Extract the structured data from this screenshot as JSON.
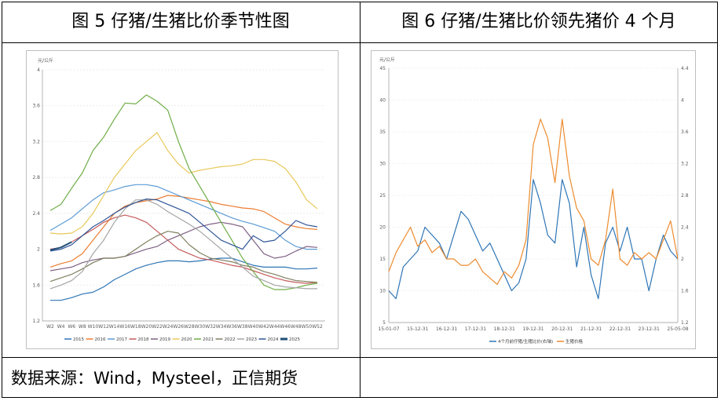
{
  "headers": {
    "left": "图 5 仔猪/生猪比价季节性图",
    "right": "图 6 仔猪/生猪比价领先猪价 4 个月"
  },
  "source": "数据来源：Wind，Mysteel，正信期货",
  "chart_data": [
    {
      "type": "line",
      "ylabel": "元/公斤",
      "ylim": [
        1.2,
        4
      ],
      "yticks": [
        1.2,
        1.6,
        2,
        2.4,
        2.8,
        3.2,
        3.6,
        4
      ],
      "ytick_labels": [
        "1.2",
        "1.6",
        "2",
        "2.4",
        "2.8",
        "3.2",
        "3.6",
        "4"
      ],
      "xlabels": [
        "W2",
        "W4",
        "W6",
        "W8",
        "W10",
        "W12",
        "W14",
        "W16",
        "W18",
        "W20",
        "W22",
        "W24",
        "W26",
        "W28",
        "W30",
        "W32",
        "W34",
        "W36",
        "W38",
        "W40",
        "W42",
        "W44",
        "W46",
        "W48",
        "W50",
        "W52"
      ],
      "grid": "horizontal",
      "legend_position": "bottom",
      "series": [
        {
          "name": "2015",
          "color": "#2e75b6",
          "values": [
            1.43,
            1.43,
            1.46,
            1.5,
            1.52,
            1.58,
            1.66,
            1.72,
            1.78,
            1.82,
            1.85,
            1.87,
            1.87,
            1.86,
            1.87,
            1.89,
            1.9,
            1.9,
            1.86,
            1.82,
            1.8,
            1.8,
            1.8,
            1.78,
            1.78,
            1.79
          ]
        },
        {
          "name": "2016",
          "color": "#ed7d31",
          "values": [
            1.8,
            1.84,
            1.87,
            1.95,
            2.1,
            2.25,
            2.4,
            2.48,
            2.52,
            2.54,
            2.56,
            2.6,
            2.59,
            2.57,
            2.55,
            2.53,
            2.5,
            2.48,
            2.46,
            2.45,
            2.42,
            2.35,
            2.28,
            2.25,
            2.23,
            2.22
          ]
        },
        {
          "name": "2017",
          "color": "#5b9bd5",
          "values": [
            2.21,
            2.28,
            2.35,
            2.45,
            2.55,
            2.63,
            2.66,
            2.7,
            2.72,
            2.72,
            2.7,
            2.65,
            2.6,
            2.55,
            2.5,
            2.45,
            2.4,
            2.35,
            2.31,
            2.28,
            2.24,
            2.2,
            2.1,
            2.03,
            2.0,
            2.0
          ]
        },
        {
          "name": "2018",
          "color": "#c55a5a",
          "values": [
            2.0,
            2.02,
            2.08,
            2.15,
            2.22,
            2.3,
            2.35,
            2.38,
            2.35,
            2.3,
            2.2,
            2.1,
            2.0,
            1.95,
            1.9,
            1.88,
            1.85,
            1.82,
            1.8,
            1.76,
            1.72,
            1.68,
            1.65,
            1.63,
            1.62,
            1.63
          ]
        },
        {
          "name": "2019",
          "color": "#7f6084",
          "values": [
            1.76,
            1.78,
            1.8,
            1.85,
            1.88,
            1.9,
            1.9,
            1.92,
            1.96,
            2.0,
            2.03,
            2.1,
            2.15,
            2.2,
            2.25,
            2.28,
            2.3,
            2.28,
            2.25,
            2.1,
            1.95,
            1.9,
            1.92,
            1.98,
            2.03,
            2.02
          ]
        },
        {
          "name": "2020",
          "color": "#e8c85a",
          "values": [
            2.18,
            2.17,
            2.18,
            2.25,
            2.4,
            2.6,
            2.8,
            2.95,
            3.1,
            3.2,
            3.3,
            3.1,
            2.95,
            2.85,
            2.88,
            2.9,
            2.92,
            2.93,
            2.95,
            3.0,
            3.0,
            2.98,
            2.9,
            2.75,
            2.55,
            2.45
          ]
        },
        {
          "name": "2021",
          "color": "#70ad47",
          "values": [
            2.43,
            2.5,
            2.68,
            2.85,
            3.1,
            3.25,
            3.45,
            3.63,
            3.62,
            3.72,
            3.65,
            3.55,
            3.2,
            2.9,
            2.7,
            2.5,
            2.3,
            2.1,
            1.9,
            1.75,
            1.6,
            1.55,
            1.55,
            1.57,
            1.6,
            1.62
          ]
        },
        {
          "name": "2022",
          "color": "#7f7f5f",
          "values": [
            1.64,
            1.68,
            1.72,
            1.78,
            1.85,
            1.9,
            1.9,
            1.92,
            2.0,
            2.08,
            2.15,
            2.2,
            2.18,
            2.05,
            1.96,
            1.9,
            1.88,
            1.86,
            1.82,
            1.8,
            1.75,
            1.72,
            1.68,
            1.65,
            1.64,
            1.63
          ]
        },
        {
          "name": "2023",
          "color": "#a5a5a5",
          "values": [
            1.56,
            1.6,
            1.65,
            1.75,
            1.95,
            2.1,
            2.3,
            2.45,
            2.55,
            2.55,
            2.5,
            2.42,
            2.35,
            2.28,
            2.2,
            2.1,
            2.0,
            1.9,
            1.8,
            1.7,
            1.65,
            1.6,
            1.58,
            1.57,
            1.56,
            1.56
          ]
        },
        {
          "name": "2024",
          "color": "#2f5597",
          "values": [
            1.98,
            2.0,
            2.05,
            2.15,
            2.25,
            2.32,
            2.4,
            2.47,
            2.52,
            2.56,
            2.55,
            2.5,
            2.45,
            2.4,
            2.3,
            2.2,
            2.1,
            2.05,
            2.0,
            2.15,
            2.08,
            2.1,
            2.2,
            2.32,
            2.27,
            2.25
          ]
        },
        {
          "name": "2025",
          "color": "#1f4e79",
          "values": [
            1.99,
            2.02,
            2.08,
            null,
            null,
            null,
            null,
            null,
            null,
            null,
            null,
            null,
            null,
            null,
            null,
            null,
            null,
            null,
            null,
            null,
            null,
            null,
            null,
            null,
            null,
            null
          ]
        }
      ]
    },
    {
      "type": "line",
      "ylabel": "元/公斤",
      "ylim": [
        5,
        45
      ],
      "yticks": [
        5,
        10,
        15,
        20,
        25,
        30,
        35,
        40,
        45
      ],
      "y2lim": [
        1.2,
        4.4
      ],
      "y2ticks": [
        1.2,
        1.6,
        2,
        2.4,
        2.8,
        3.2,
        3.6,
        4,
        4.4
      ],
      "y2tick_labels": [
        "1.2",
        "1.6",
        "2",
        "2.4",
        "2.8",
        "3.2",
        "3.6",
        "4",
        "4.4"
      ],
      "xlabels": [
        "15-01-07",
        "15-12-31",
        "16-12-31",
        "17-12-31",
        "18-12-31",
        "19-12-31",
        "20-12-31",
        "21-12-31",
        "22-12-31",
        "23-12-31",
        "25-05-08"
      ],
      "legend_position": "bottom",
      "series": [
        {
          "name": "4个月前仔猪/生猪比价(右轴)",
          "axis": "right",
          "color": "#2e75b6",
          "values": [
            1.6,
            1.5,
            1.9,
            2.0,
            2.1,
            2.4,
            2.3,
            2.2,
            2.0,
            2.3,
            2.6,
            2.5,
            2.3,
            2.1,
            2.2,
            2.0,
            1.8,
            1.6,
            1.7,
            2.0,
            3.0,
            2.7,
            2.3,
            2.2,
            3.0,
            2.7,
            1.9,
            2.4,
            1.8,
            1.5,
            2.2,
            2.4,
            2.1,
            2.4,
            2.0,
            2.0,
            1.6,
            2.0,
            2.3,
            2.1,
            2.0
          ]
        },
        {
          "name": "生猪价格",
          "axis": "left",
          "color": "#ed8b2f",
          "values": [
            13,
            16,
            18,
            20,
            17,
            18,
            16,
            17,
            15,
            15,
            14,
            14,
            15,
            13,
            12,
            11,
            13,
            12,
            14,
            18,
            33,
            37,
            34,
            27,
            37,
            28,
            23,
            21,
            15,
            14,
            18,
            26,
            15,
            14,
            16,
            15,
            16,
            15,
            18,
            21,
            15
          ]
        }
      ]
    }
  ]
}
